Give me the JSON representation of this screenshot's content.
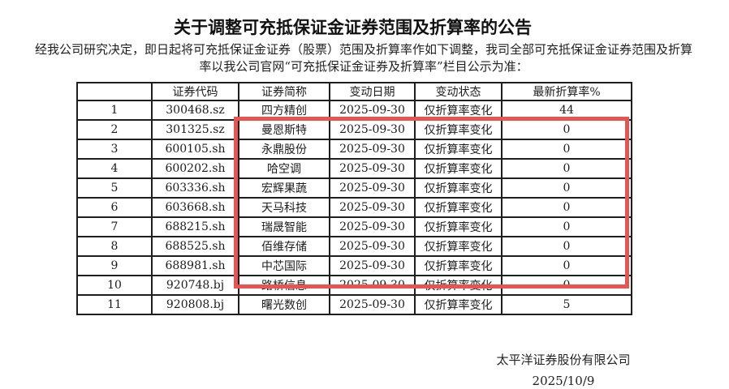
{
  "document": {
    "title": "关于调整可充抵保证金证券范围及折算率的公告",
    "intro_line1": "经我公司研究决定，即日起将可充抵保证金证券（股票）范围及折算率作如下调整，我司全部可充抵保证金证券范围及折算",
    "intro_line2": "率以我公司官网“可充抵保证金证券及折算率”栏目公示为准：",
    "footer_company": "太平洋证券股份有限公司",
    "footer_date": "2025/10/9"
  },
  "table": {
    "headers": [
      "",
      "证券代码",
      "证券简称",
      "变动日期",
      "变动状态",
      "最新折算率%"
    ],
    "rows": [
      [
        "1",
        "300468.sz",
        "四方精创",
        "2025-09-30",
        "仅折算率变化",
        "44"
      ],
      [
        "2",
        "301325.sz",
        "曼恩斯特",
        "2025-09-30",
        "仅折算率变化",
        "0"
      ],
      [
        "3",
        "600105.sh",
        "永鼎股份",
        "2025-09-30",
        "仅折算率变化",
        "0"
      ],
      [
        "4",
        "600202.sh",
        "哈空调",
        "2025-09-30",
        "仅折算率变化",
        "0"
      ],
      [
        "5",
        "603336.sh",
        "宏辉果蔬",
        "2025-09-30",
        "仅折算率变化",
        "0"
      ],
      [
        "6",
        "603668.sh",
        "天马科技",
        "2025-09-30",
        "仅折算率变化",
        "0"
      ],
      [
        "7",
        "688215.sh",
        "瑞晟智能",
        "2025-09-30",
        "仅折算率变化",
        "0"
      ],
      [
        "8",
        "688525.sh",
        "佰维存储",
        "2025-09-30",
        "仅折算率变化",
        "0"
      ],
      [
        "9",
        "688981.sh",
        "中芯国际",
        "2025-09-30",
        "仅折算率变化",
        "0"
      ],
      [
        "10",
        "920748.bj",
        "路桥信息",
        "2025-09-30",
        "仅折算率变化",
        "0"
      ],
      [
        "11",
        "920808.bj",
        "曙光数创",
        "2025-09-30",
        "仅折算率变化",
        "5"
      ]
    ]
  },
  "highlight": {
    "color": "#e85450"
  }
}
